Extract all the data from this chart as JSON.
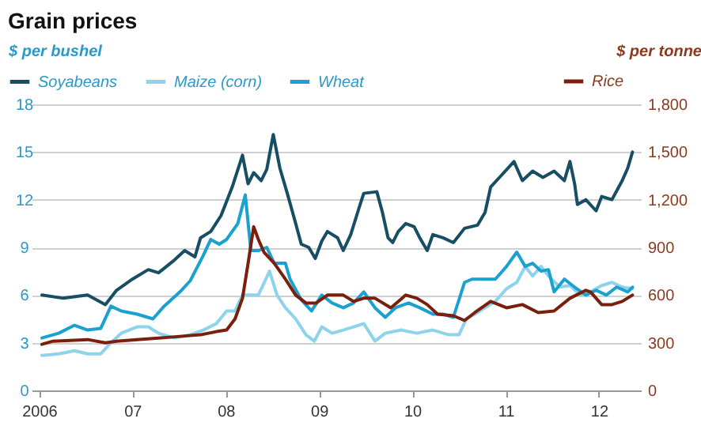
{
  "chart_data": {
    "type": "line",
    "title": "Grain prices",
    "ylabel": "$ per bushel",
    "y2label": "$ per tonne",
    "xlim": [
      2005.92,
      2012.45
    ],
    "xticks": [
      2006,
      {
        "value": 2007,
        "label": "07"
      },
      {
        "value": 2008,
        "label": "08"
      },
      {
        "value": 2009,
        "label": "09"
      },
      {
        "value": 2010,
        "label": "10"
      },
      {
        "value": 2011,
        "label": "11"
      },
      {
        "value": 2012,
        "label": "12"
      }
    ],
    "ylim": [
      0,
      18
    ],
    "yticks": [
      0,
      3,
      6,
      9,
      12,
      15,
      18
    ],
    "y2lim": [
      0,
      1800
    ],
    "y2ticks": [
      0,
      300,
      600,
      900,
      {
        "value": 1200,
        "label": "1,200"
      },
      {
        "value": 1500,
        "label": "1,500"
      },
      {
        "value": 1800,
        "label": "1,800"
      }
    ],
    "grid": "y",
    "legend": "top",
    "series": [
      {
        "name": "Soyabeans",
        "color": "#174e63",
        "x": [
          2006.03,
          2006.26,
          2006.52,
          2006.71,
          2006.83,
          2007.0,
          2007.17,
          2007.28,
          2007.45,
          2007.56,
          2007.67,
          2007.73,
          2007.84,
          2007.95,
          2008.07,
          2008.18,
          2008.24,
          2008.3,
          2008.38,
          2008.44,
          2008.51,
          2008.58,
          2008.66,
          2008.75,
          2008.81,
          2008.89,
          2008.96,
          2009.03,
          2009.09,
          2009.2,
          2009.26,
          2009.34,
          2009.43,
          2009.48,
          2009.62,
          2009.68,
          2009.74,
          2009.79,
          2009.85,
          2009.93,
          2010.02,
          2010.08,
          2010.16,
          2010.22,
          2010.33,
          2010.44,
          2010.56,
          2010.7,
          2010.78,
          2010.84,
          2010.95,
          2011.09,
          2011.18,
          2011.29,
          2011.4,
          2011.52,
          2011.63,
          2011.69,
          2011.74,
          2011.77,
          2011.86,
          2011.97,
          2012.03,
          2012.14,
          2012.25,
          2012.31,
          2012.36
        ],
        "values": [
          6.0,
          5.8,
          6.0,
          5.4,
          6.3,
          7.0,
          7.6,
          7.4,
          8.2,
          8.8,
          8.4,
          9.6,
          10.0,
          11.0,
          12.8,
          14.8,
          13.0,
          13.7,
          13.2,
          13.9,
          16.1,
          14.0,
          12.4,
          10.5,
          9.2,
          9.0,
          8.3,
          9.4,
          10.0,
          9.6,
          8.8,
          9.8,
          11.5,
          12.4,
          12.5,
          11.2,
          9.6,
          9.3,
          10.0,
          10.5,
          10.3,
          9.6,
          8.8,
          9.8,
          9.6,
          9.3,
          10.2,
          10.4,
          11.2,
          12.8,
          13.5,
          14.4,
          13.2,
          13.8,
          13.4,
          13.8,
          13.2,
          14.4,
          13.0,
          11.7,
          12.0,
          11.3,
          12.2,
          12.0,
          13.2,
          14.0,
          15.0
        ]
      },
      {
        "name": "Maize (corn)",
        "color": "#8ed3ec",
        "x": [
          2006.03,
          2006.21,
          2006.38,
          2006.52,
          2006.66,
          2006.77,
          2006.88,
          2007.05,
          2007.17,
          2007.28,
          2007.45,
          2007.62,
          2007.76,
          2007.9,
          2008.01,
          2008.1,
          2008.18,
          2008.35,
          2008.47,
          2008.55,
          2008.64,
          2008.75,
          2008.86,
          2008.95,
          2009.03,
          2009.14,
          2009.26,
          2009.37,
          2009.48,
          2009.6,
          2009.71,
          2009.88,
          2010.05,
          2010.22,
          2010.39,
          2010.5,
          2010.58,
          2010.67,
          2010.78,
          2010.89,
          2011.01,
          2011.12,
          2011.21,
          2011.29,
          2011.38,
          2011.46,
          2011.58,
          2011.69,
          2011.8,
          2011.91,
          2012.03,
          2012.14,
          2012.25,
          2012.36
        ],
        "values": [
          2.2,
          2.3,
          2.5,
          2.3,
          2.3,
          3.0,
          3.6,
          4.0,
          4.0,
          3.6,
          3.3,
          3.5,
          3.8,
          4.2,
          5.0,
          5.0,
          6.0,
          6.0,
          7.5,
          6.0,
          5.2,
          4.5,
          3.5,
          3.1,
          4.0,
          3.6,
          3.8,
          4.0,
          4.2,
          3.1,
          3.6,
          3.8,
          3.6,
          3.8,
          3.5,
          3.5,
          4.5,
          4.8,
          5.2,
          5.6,
          6.4,
          6.8,
          7.8,
          7.2,
          7.8,
          7.2,
          6.5,
          6.6,
          6.0,
          6.2,
          6.6,
          6.8,
          6.5,
          6.4
        ]
      },
      {
        "name": "Wheat",
        "color": "#1ba1cf",
        "x": [
          2006.03,
          2006.21,
          2006.38,
          2006.52,
          2006.66,
          2006.77,
          2006.88,
          2007.05,
          2007.22,
          2007.34,
          2007.51,
          2007.62,
          2007.76,
          2007.84,
          2007.93,
          2008.01,
          2008.13,
          2008.21,
          2008.27,
          2008.35,
          2008.44,
          2008.52,
          2008.64,
          2008.69,
          2008.81,
          2008.92,
          2009.03,
          2009.14,
          2009.26,
          2009.37,
          2009.48,
          2009.6,
          2009.71,
          2009.82,
          2009.96,
          2010.08,
          2010.22,
          2010.33,
          2010.44,
          2010.56,
          2010.64,
          2010.78,
          2010.89,
          2011.01,
          2011.12,
          2011.21,
          2011.29,
          2011.38,
          2011.46,
          2011.52,
          2011.63,
          2011.74,
          2011.86,
          2011.97,
          2012.08,
          2012.19,
          2012.31,
          2012.36
        ],
        "values": [
          3.3,
          3.6,
          4.1,
          3.8,
          3.9,
          5.3,
          5.0,
          4.8,
          4.5,
          5.3,
          6.2,
          6.9,
          8.5,
          9.5,
          9.2,
          9.5,
          10.5,
          12.3,
          8.8,
          8.8,
          9.0,
          8.0,
          8.0,
          7.0,
          5.7,
          5.0,
          6.0,
          5.5,
          5.2,
          5.5,
          6.2,
          5.2,
          4.6,
          5.2,
          5.5,
          5.2,
          4.8,
          4.8,
          4.6,
          6.8,
          7.0,
          7.0,
          7.0,
          7.8,
          8.7,
          7.8,
          8.0,
          7.5,
          7.6,
          6.2,
          7.0,
          6.5,
          6.0,
          6.3,
          6.0,
          6.5,
          6.2,
          6.5
        ]
      },
      {
        "name": "Rice",
        "color": "#7a1f0c",
        "axis": "y2",
        "x": [
          2006.03,
          2006.15,
          2006.52,
          2006.71,
          2006.83,
          2007.05,
          2007.28,
          2007.51,
          2007.73,
          2007.9,
          2008.01,
          2008.1,
          2008.18,
          2008.24,
          2008.3,
          2008.35,
          2008.41,
          2008.52,
          2008.64,
          2008.75,
          2008.86,
          2008.97,
          2009.09,
          2009.26,
          2009.37,
          2009.48,
          2009.6,
          2009.77,
          2009.93,
          2010.05,
          2010.16,
          2010.27,
          2010.44,
          2010.56,
          2010.67,
          2010.84,
          2011.01,
          2011.18,
          2011.35,
          2011.52,
          2011.69,
          2011.86,
          2011.91,
          2012.03,
          2012.14,
          2012.25,
          2012.36
        ],
        "values": [
          290,
          310,
          320,
          300,
          310,
          320,
          330,
          340,
          350,
          370,
          380,
          450,
          580,
          800,
          1030,
          950,
          870,
          800,
          700,
          600,
          550,
          550,
          600,
          600,
          560,
          580,
          580,
          520,
          600,
          580,
          540,
          480,
          470,
          440,
          490,
          560,
          520,
          540,
          490,
          500,
          580,
          630,
          620,
          540,
          540,
          560,
          600
        ]
      }
    ]
  }
}
